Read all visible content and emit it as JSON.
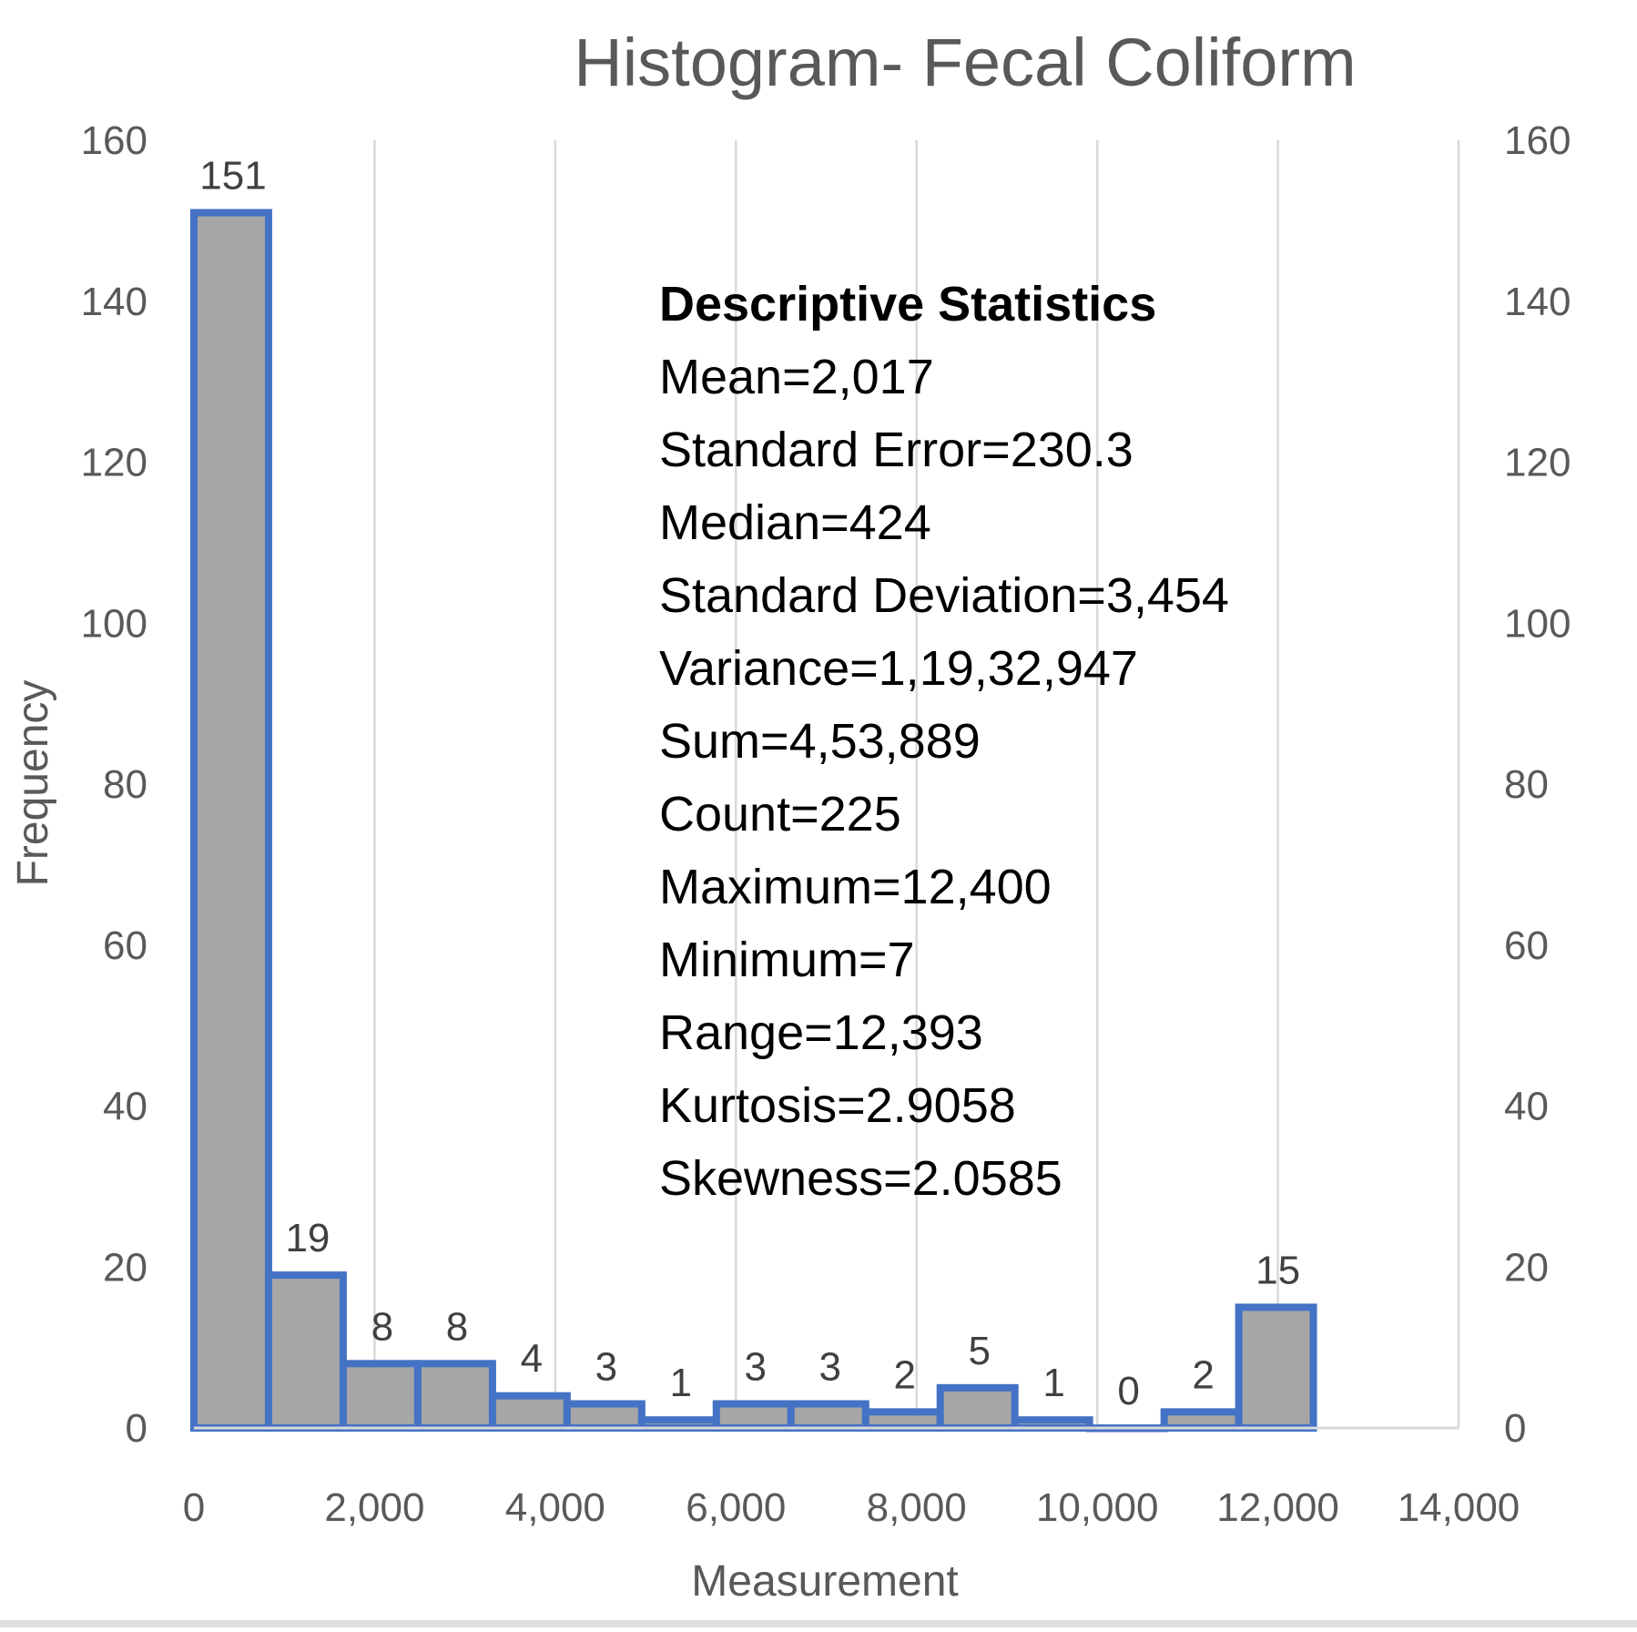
{
  "chart_data": {
    "type": "bar",
    "subtype": "histogram",
    "title": "Histogram- Fecal Coliform",
    "xlabel": "Measurement",
    "ylabel": "Frequency",
    "xlim": [
      0,
      14000
    ],
    "ylim": [
      0,
      160
    ],
    "x_ticks": [
      0,
      2000,
      4000,
      6000,
      8000,
      10000,
      12000,
      14000
    ],
    "x_tick_labels": [
      "0",
      "2,000",
      "4,000",
      "6,000",
      "8,000",
      "10,000",
      "12,000",
      "14,000"
    ],
    "y_ticks": [
      0,
      20,
      40,
      60,
      80,
      100,
      120,
      140,
      160
    ],
    "y_tick_labels": [
      "0",
      "20",
      "40",
      "60",
      "80",
      "100",
      "120",
      "140",
      "160"
    ],
    "secondary_y_axis": true,
    "grid": "vertical",
    "bin_width": 826.2,
    "bin_starts": [
      0,
      826,
      1652,
      2479,
      3305,
      4131,
      4957,
      5783,
      6610,
      7436,
      8262,
      9088,
      9914,
      10741,
      11567
    ],
    "values": [
      151,
      19,
      8,
      8,
      4,
      3,
      1,
      3,
      3,
      2,
      5,
      1,
      0,
      2,
      15
    ],
    "value_labels": [
      "151",
      "19",
      "8",
      "8",
      "4",
      "3",
      "1",
      "3",
      "3",
      "2",
      "5",
      "1",
      "0",
      "2",
      "15"
    ],
    "bar_fill": "#a6a6a6",
    "bar_outline": "#4472c4",
    "annotation": {
      "heading": "Descriptive Statistics",
      "lines": [
        "Mean=2,017",
        "Standard Error=230.3",
        "Median=424",
        "Standard Deviation=3,454",
        "Variance=1,19,32,947",
        "Sum=4,53,889",
        "Count=225",
        "Maximum=12,400",
        "Minimum=7",
        "Range=12,393",
        "Kurtosis=2.9058",
        "Skewness=2.0585"
      ]
    }
  }
}
